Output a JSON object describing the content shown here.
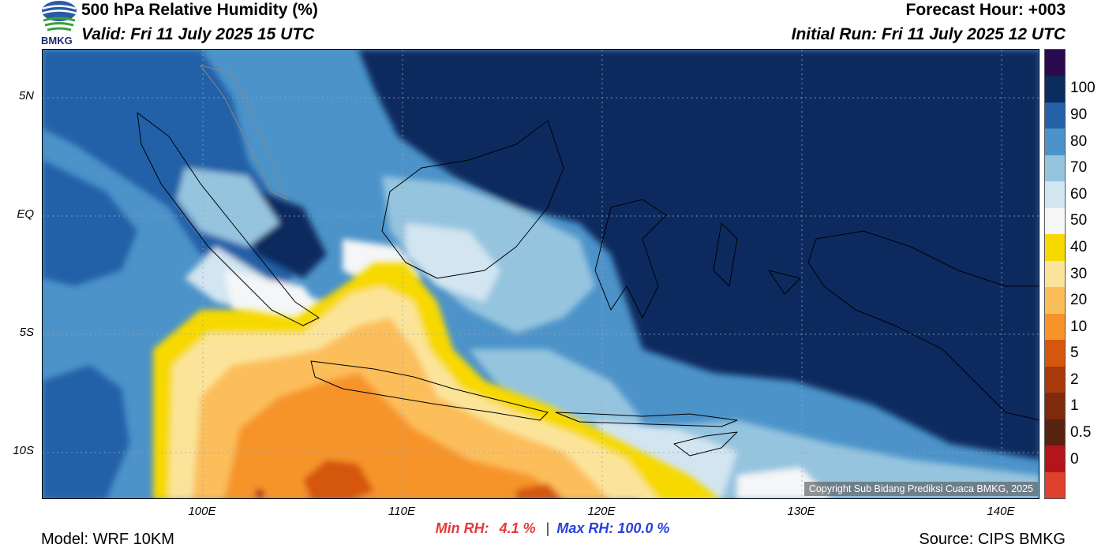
{
  "header": {
    "title": "500 hPa Relative Humidity (%)",
    "valid": "Valid: Fri 11 July 2025 15 UTC",
    "forecast_hour": "Forecast Hour: +003",
    "initial_run": "Initial Run: Fri 11 July 2025 12 UTC"
  },
  "logo": {
    "text": "BMKG"
  },
  "axes": {
    "y_ticks": [
      "5N",
      "EQ",
      "5S",
      "10S"
    ],
    "x_ticks": [
      "100E",
      "110E",
      "120E",
      "130E",
      "140E"
    ]
  },
  "colorbar": {
    "labels": [
      "100",
      "90",
      "80",
      "70",
      "60",
      "50",
      "40",
      "30",
      "20",
      "10",
      "5",
      "2",
      "1",
      "0.5",
      "0"
    ],
    "colors": [
      "#2b0a4e",
      "#0c2c5e",
      "#2361a8",
      "#4c93c9",
      "#95c4df",
      "#d2e5f0",
      "#f4f6f7",
      "#f7d900",
      "#fbe49a",
      "#fcbe5a",
      "#f6942a",
      "#d5560f",
      "#a7390b",
      "#7e2a0c",
      "#5a2210",
      "#b2151a",
      "#e0402e"
    ]
  },
  "stats": {
    "min_label": "Min RH:",
    "min_value": "4.1 %",
    "separator": "|",
    "max_label": "Max RH:",
    "max_value": "100.0 %"
  },
  "footer": {
    "model": "Model: WRF 10KM",
    "source": "Source: CIPS BMKG",
    "copyright": "Copyright Sub Bidang Prediksi Cuaca BMKG, 2025"
  }
}
